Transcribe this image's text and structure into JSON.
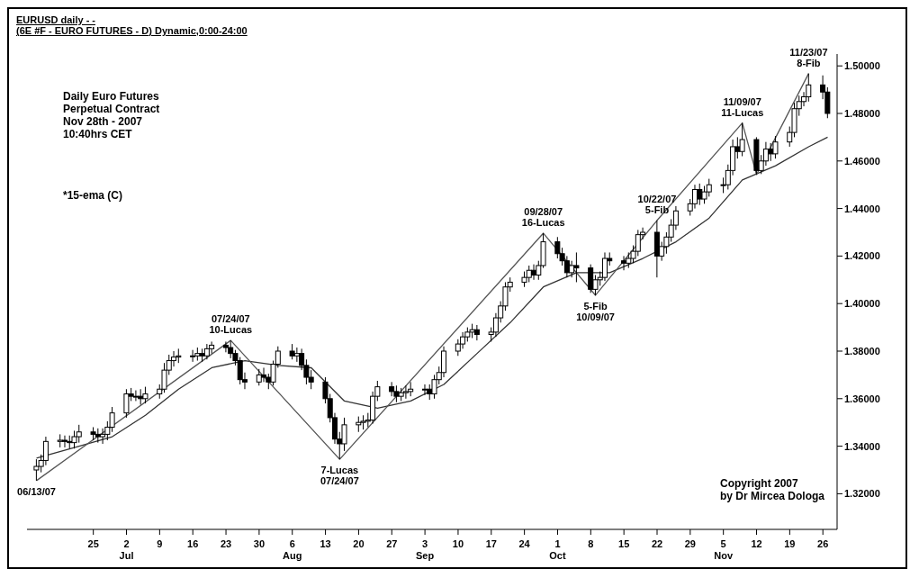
{
  "chart_data": {
    "type": "candlestick",
    "title": "EURUSD daily - -",
    "subtitle": "(6E #F - EURO FUTURES - D) Dynamic,0:00-24:00",
    "color": "#000000",
    "x": [
      "2007-06-13",
      "2007-06-14",
      "2007-06-15",
      "2007-06-18",
      "2007-06-19",
      "2007-06-20",
      "2007-06-21",
      "2007-06-22",
      "2007-06-25",
      "2007-06-26",
      "2007-06-27",
      "2007-06-28",
      "2007-06-29",
      "2007-07-02",
      "2007-07-03",
      "2007-07-04",
      "2007-07-05",
      "2007-07-06",
      "2007-07-09",
      "2007-07-10",
      "2007-07-11",
      "2007-07-12",
      "2007-07-13",
      "2007-07-16",
      "2007-07-17",
      "2007-07-18",
      "2007-07-19",
      "2007-07-20",
      "2007-07-23",
      "2007-07-24",
      "2007-07-25",
      "2007-07-26",
      "2007-07-27",
      "2007-07-30",
      "2007-07-31",
      "2007-08-01",
      "2007-08-02",
      "2007-08-03",
      "2007-08-06",
      "2007-08-07",
      "2007-08-08",
      "2007-08-09",
      "2007-08-10",
      "2007-08-13",
      "2007-08-14",
      "2007-08-15",
      "2007-08-16",
      "2007-08-17",
      "2007-08-20",
      "2007-08-21",
      "2007-08-22",
      "2007-08-23",
      "2007-08-24",
      "2007-08-27",
      "2007-08-28",
      "2007-08-29",
      "2007-08-30",
      "2007-08-31",
      "2007-09-03",
      "2007-09-04",
      "2007-09-05",
      "2007-09-06",
      "2007-09-07",
      "2007-09-10",
      "2007-09-11",
      "2007-09-12",
      "2007-09-13",
      "2007-09-14",
      "2007-09-17",
      "2007-09-18",
      "2007-09-19",
      "2007-09-20",
      "2007-09-21",
      "2007-09-24",
      "2007-09-25",
      "2007-09-26",
      "2007-09-27",
      "2007-09-28",
      "2007-10-01",
      "2007-10-02",
      "2007-10-03",
      "2007-10-04",
      "2007-10-05",
      "2007-10-08",
      "2007-10-09",
      "2007-10-10",
      "2007-10-11",
      "2007-10-12",
      "2007-10-15",
      "2007-10-16",
      "2007-10-17",
      "2007-10-18",
      "2007-10-19",
      "2007-10-22",
      "2007-10-23",
      "2007-10-24",
      "2007-10-25",
      "2007-10-26",
      "2007-10-29",
      "2007-10-30",
      "2007-10-31",
      "2007-11-01",
      "2007-11-02",
      "2007-11-05",
      "2007-11-06",
      "2007-11-07",
      "2007-11-08",
      "2007-11-09",
      "2007-11-12",
      "2007-11-13",
      "2007-11-14",
      "2007-11-15",
      "2007-11-16",
      "2007-11-19",
      "2007-11-20",
      "2007-11-21",
      "2007-11-22",
      "2007-11-23",
      "2007-11-26",
      "2007-11-27"
    ],
    "ohlc": [
      [
        1.33,
        1.3345,
        1.3255,
        1.3315
      ],
      [
        1.3315,
        1.3365,
        1.329,
        1.334
      ],
      [
        1.334,
        1.344,
        1.332,
        1.342
      ],
      [
        1.342,
        1.345,
        1.3395,
        1.3425
      ],
      [
        1.3425,
        1.3445,
        1.3395,
        1.342
      ],
      [
        1.342,
        1.3445,
        1.339,
        1.3415
      ],
      [
        1.3415,
        1.3465,
        1.339,
        1.344
      ],
      [
        1.344,
        1.349,
        1.3415,
        1.346
      ],
      [
        1.346,
        1.348,
        1.3425,
        1.345
      ],
      [
        1.345,
        1.3475,
        1.3415,
        1.344
      ],
      [
        1.344,
        1.3475,
        1.341,
        1.345
      ],
      [
        1.345,
        1.3505,
        1.3425,
        1.348
      ],
      [
        1.348,
        1.3565,
        1.346,
        1.354
      ],
      [
        1.354,
        1.364,
        1.352,
        1.362
      ],
      [
        1.362,
        1.3645,
        1.359,
        1.361
      ],
      [
        1.361,
        1.3635,
        1.359,
        1.361
      ],
      [
        1.361,
        1.364,
        1.3575,
        1.36
      ],
      [
        1.36,
        1.365,
        1.358,
        1.362
      ],
      [
        1.362,
        1.366,
        1.36,
        1.364
      ],
      [
        1.364,
        1.375,
        1.3625,
        1.372
      ],
      [
        1.372,
        1.3785,
        1.37,
        1.376
      ],
      [
        1.376,
        1.38,
        1.3735,
        1.3775
      ],
      [
        1.3775,
        1.381,
        1.375,
        1.378
      ],
      [
        1.378,
        1.3805,
        1.3755,
        1.378
      ],
      [
        1.378,
        1.3815,
        1.376,
        1.379
      ],
      [
        1.379,
        1.381,
        1.3755,
        1.378
      ],
      [
        1.378,
        1.383,
        1.3765,
        1.381
      ],
      [
        1.381,
        1.384,
        1.379,
        1.3825
      ],
      [
        1.3825,
        1.384,
        1.3795,
        1.3815
      ],
      [
        1.3815,
        1.3845,
        1.377,
        1.379
      ],
      [
        1.379,
        1.3805,
        1.374,
        1.376
      ],
      [
        1.376,
        1.3775,
        1.366,
        1.368
      ],
      [
        1.368,
        1.371,
        1.364,
        1.367
      ],
      [
        1.367,
        1.3725,
        1.3655,
        1.37
      ],
      [
        1.37,
        1.373,
        1.367,
        1.369
      ],
      [
        1.369,
        1.3705,
        1.364,
        1.367
      ],
      [
        1.367,
        1.376,
        1.3655,
        1.3745
      ],
      [
        1.3745,
        1.382,
        1.373,
        1.38
      ],
      [
        1.38,
        1.383,
        1.3765,
        1.378
      ],
      [
        1.378,
        1.3815,
        1.3755,
        1.379
      ],
      [
        1.379,
        1.381,
        1.372,
        1.374
      ],
      [
        1.374,
        1.3765,
        1.366,
        1.369
      ],
      [
        1.369,
        1.372,
        1.364,
        1.367
      ],
      [
        1.367,
        1.369,
        1.358,
        1.36
      ],
      [
        1.36,
        1.362,
        1.35,
        1.352
      ],
      [
        1.352,
        1.354,
        1.341,
        1.343
      ],
      [
        1.343,
        1.346,
        1.3345,
        1.341
      ],
      [
        1.341,
        1.352,
        1.338,
        1.349
      ],
      [
        1.349,
        1.3525,
        1.346,
        1.35
      ],
      [
        1.35,
        1.353,
        1.347,
        1.3505
      ],
      [
        1.3505,
        1.354,
        1.348,
        1.351
      ],
      [
        1.351,
        1.363,
        1.3495,
        1.361
      ],
      [
        1.361,
        1.3675,
        1.359,
        1.365
      ],
      [
        1.365,
        1.367,
        1.361,
        1.363
      ],
      [
        1.363,
        1.3655,
        1.3585,
        1.361
      ],
      [
        1.361,
        1.3645,
        1.359,
        1.3625
      ],
      [
        1.3625,
        1.3655,
        1.36,
        1.363
      ],
      [
        1.363,
        1.367,
        1.361,
        1.364
      ],
      [
        1.364,
        1.366,
        1.3615,
        1.364
      ],
      [
        1.364,
        1.366,
        1.3595,
        1.362
      ],
      [
        1.362,
        1.37,
        1.36,
        1.368
      ],
      [
        1.368,
        1.3735,
        1.366,
        1.371
      ],
      [
        1.371,
        1.382,
        1.369,
        1.38
      ],
      [
        1.38,
        1.385,
        1.378,
        1.383
      ],
      [
        1.383,
        1.388,
        1.381,
        1.386
      ],
      [
        1.386,
        1.39,
        1.384,
        1.388
      ],
      [
        1.388,
        1.3915,
        1.3855,
        1.389
      ],
      [
        1.389,
        1.391,
        1.3845,
        1.387
      ],
      [
        1.387,
        1.39,
        1.384,
        1.388
      ],
      [
        1.388,
        1.396,
        1.386,
        1.394
      ],
      [
        1.394,
        1.401,
        1.392,
        1.399
      ],
      [
        1.399,
        1.409,
        1.397,
        1.407
      ],
      [
        1.407,
        1.411,
        1.405,
        1.409
      ],
      [
        1.409,
        1.4135,
        1.407,
        1.411
      ],
      [
        1.411,
        1.416,
        1.409,
        1.414
      ],
      [
        1.414,
        1.4165,
        1.41,
        1.412
      ],
      [
        1.412,
        1.418,
        1.41,
        1.416
      ],
      [
        1.416,
        1.4296,
        1.415,
        1.426
      ],
      [
        1.426,
        1.428,
        1.419,
        1.421
      ],
      [
        1.421,
        1.4235,
        1.416,
        1.418
      ],
      [
        1.418,
        1.42,
        1.411,
        1.413
      ],
      [
        1.413,
        1.418,
        1.411,
        1.416
      ],
      [
        1.416,
        1.4215,
        1.409,
        1.415
      ],
      [
        1.415,
        1.4165,
        1.4045,
        1.406
      ],
      [
        1.406,
        1.412,
        1.4035,
        1.41
      ],
      [
        1.41,
        1.4135,
        1.4075,
        1.411
      ],
      [
        1.411,
        1.4215,
        1.4095,
        1.419
      ],
      [
        1.419,
        1.4215,
        1.416,
        1.418
      ],
      [
        1.418,
        1.42,
        1.414,
        1.417
      ],
      [
        1.417,
        1.4215,
        1.415,
        1.419
      ],
      [
        1.419,
        1.4245,
        1.417,
        1.422
      ],
      [
        1.422,
        1.431,
        1.42,
        1.429
      ],
      [
        1.429,
        1.432,
        1.427,
        1.43
      ],
      [
        1.43,
        1.435,
        1.411,
        1.42
      ],
      [
        1.42,
        1.426,
        1.418,
        1.424
      ],
      [
        1.424,
        1.43,
        1.421,
        1.428
      ],
      [
        1.428,
        1.4355,
        1.426,
        1.433
      ],
      [
        1.433,
        1.441,
        1.431,
        1.439
      ],
      [
        1.439,
        1.444,
        1.437,
        1.442
      ],
      [
        1.442,
        1.45,
        1.44,
        1.448
      ],
      [
        1.448,
        1.4505,
        1.4415,
        1.444
      ],
      [
        1.444,
        1.4495,
        1.442,
        1.447
      ],
      [
        1.447,
        1.4525,
        1.445,
        1.45
      ],
      [
        1.45,
        1.453,
        1.4465,
        1.45
      ],
      [
        1.45,
        1.4585,
        1.448,
        1.456
      ],
      [
        1.456,
        1.469,
        1.454,
        1.466
      ],
      [
        1.466,
        1.47,
        1.461,
        1.464
      ],
      [
        1.464,
        1.476,
        1.462,
        1.469
      ],
      [
        1.469,
        1.47,
        1.4543,
        1.456
      ],
      [
        1.456,
        1.4625,
        1.4545,
        1.46
      ],
      [
        1.46,
        1.468,
        1.458,
        1.465
      ],
      [
        1.465,
        1.4675,
        1.46,
        1.463
      ],
      [
        1.463,
        1.4705,
        1.461,
        1.468
      ],
      [
        1.468,
        1.4745,
        1.466,
        1.472
      ],
      [
        1.472,
        1.4845,
        1.47,
        1.482
      ],
      [
        1.482,
        1.4875,
        1.479,
        1.485
      ],
      [
        1.485,
        1.489,
        1.483,
        1.487
      ],
      [
        1.487,
        1.4968,
        1.485,
        1.492
      ],
      [
        1.492,
        1.496,
        1.486,
        1.489
      ],
      [
        1.489,
        1.491,
        1.478,
        1.48
      ]
    ],
    "series": [
      {
        "type": "line",
        "color": "#333333",
        "x": [
          "2007-06-13",
          "2007-06-22",
          "2007-06-29",
          "2007-07-06",
          "2007-07-13",
          "2007-07-20",
          "2007-07-27",
          "2007-08-03",
          "2007-08-10",
          "2007-08-17",
          "2007-08-24",
          "2007-08-31",
          "2007-09-07",
          "2007-09-14",
          "2007-09-21",
          "2007-09-28",
          "2007-10-05",
          "2007-10-12",
          "2007-10-19",
          "2007-10-26",
          "2007-11-02",
          "2007-11-09",
          "2007-11-16",
          "2007-11-23",
          "2007-11-27"
        ],
        "values": [
          1.335,
          1.34,
          1.344,
          1.353,
          1.364,
          1.373,
          1.376,
          1.374,
          1.373,
          1.359,
          1.356,
          1.359,
          1.366,
          1.379,
          1.392,
          1.407,
          1.413,
          1.413,
          1.419,
          1.426,
          1.436,
          1.452,
          1.458,
          1.466,
          1.47
        ]
      },
      {
        "type": "line",
        "color": "#555555",
        "x": [
          "2007-06-13",
          "2007-07-24",
          "2007-08-16",
          "2007-09-28",
          "2007-10-09",
          "2007-10-22",
          "2007-11-09",
          "2007-11-12",
          "2007-11-23"
        ],
        "values": [
          1.3255,
          1.3845,
          1.3345,
          1.4296,
          1.4035,
          1.435,
          1.476,
          1.4543,
          1.4968
        ]
      }
    ],
    "ylim": [
      1.305,
      1.505
    ],
    "yticks": [
      {
        "value": 1.32,
        "label": "1.32000"
      },
      {
        "value": 1.34,
        "label": "1.34000"
      },
      {
        "value": 1.36,
        "label": "1.36000"
      },
      {
        "value": 1.38,
        "label": "1.38000"
      },
      {
        "value": 1.4,
        "label": "1.40000"
      },
      {
        "value": 1.42,
        "label": "1.42000"
      },
      {
        "value": 1.44,
        "label": "1.44000"
      },
      {
        "value": 1.46,
        "label": "1.46000"
      },
      {
        "value": 1.48,
        "label": "1.48000"
      },
      {
        "value": 1.5,
        "label": "1.50000"
      }
    ],
    "xticks": [
      {
        "value": "2007-06-25",
        "label": "25"
      },
      {
        "value": "2007-07-02",
        "label": "2\nJul"
      },
      {
        "value": "2007-07-09",
        "label": "9"
      },
      {
        "value": "2007-07-16",
        "label": "16"
      },
      {
        "value": "2007-07-23",
        "label": "23"
      },
      {
        "value": "2007-07-30",
        "label": "30"
      },
      {
        "value": "2007-08-06",
        "label": "6\nAug"
      },
      {
        "value": "2007-08-13",
        "label": "13"
      },
      {
        "value": "2007-08-20",
        "label": "20"
      },
      {
        "value": "2007-08-27",
        "label": "27"
      },
      {
        "value": "2007-09-03",
        "label": "3\nSep"
      },
      {
        "value": "2007-09-10",
        "label": "10"
      },
      {
        "value": "2007-09-17",
        "label": "17"
      },
      {
        "value": "2007-09-24",
        "label": "24"
      },
      {
        "value": "2007-10-01",
        "label": "1\nOct"
      },
      {
        "value": "2007-10-08",
        "label": "8"
      },
      {
        "value": "2007-10-15",
        "label": "15"
      },
      {
        "value": "2007-10-22",
        "label": "22"
      },
      {
        "value": "2007-10-29",
        "label": "29"
      },
      {
        "value": "2007-11-05",
        "label": "5\nNov"
      },
      {
        "value": "2007-11-12",
        "label": "12"
      },
      {
        "value": "2007-11-19",
        "label": "19"
      },
      {
        "value": "2007-11-26",
        "label": "26"
      }
    ],
    "xlim": [
      "2007-06-11",
      "2007-11-29"
    ],
    "grid": false,
    "annotations": [
      "Daily Euro Futures\nPerpetual Contract\nNov 28th - 2007\n10:40hrs CET",
      "*15-ema (C)",
      "Copyright 2007\nby Dr Mircea Dologa",
      {
        "text": "06/13/07",
        "x": "2007-06-13",
        "y": 1.3255
      },
      {
        "text": "07/24/07\n10-Lucas",
        "x": "2007-07-24",
        "y": 1.3845
      },
      {
        "text": "7-Lucas\n07/24/07",
        "x": "2007-08-16",
        "y": 1.3345
      },
      {
        "text": "09/28/07\n16-Lucas",
        "x": "2007-09-28",
        "y": 1.4296
      },
      {
        "text": "5-Fib\n10/09/07",
        "x": "2007-10-09",
        "y": 1.4035
      },
      {
        "text": "10/22/07\n5-Fib",
        "x": "2007-10-22",
        "y": 1.435
      },
      {
        "text": "11/09/07\n11-Lucas",
        "x": "2007-11-09",
        "y": 1.476
      },
      {
        "text": "11/23/07\n8-Fib",
        "x": "2007-11-23",
        "y": 1.4968
      }
    ]
  }
}
